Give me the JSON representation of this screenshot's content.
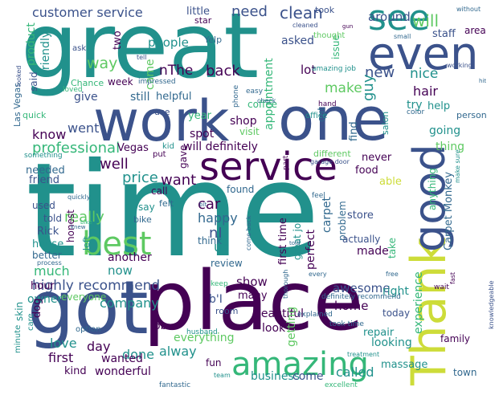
{
  "palette": {
    "deep_purple": "#440154",
    "indigo": "#3b528b",
    "blue": "#31688e",
    "teal": "#21918c",
    "green": "#35b779",
    "lime": "#5ec962",
    "yellow_green": "#b5de2b",
    "yellow": "#cddc39"
  },
  "words": [
    {
      "text": "time",
      "c": "teal"
    },
    {
      "text": "great",
      "c": "teal"
    },
    {
      "text": "place",
      "c": "deep_purple"
    },
    {
      "text": "got",
      "c": "indigo"
    },
    {
      "text": "work",
      "c": "indigo"
    },
    {
      "text": "one",
      "c": "indigo"
    },
    {
      "text": "Thank",
      "c": "yellow"
    },
    {
      "text": "good",
      "c": "indigo"
    },
    {
      "text": "even",
      "c": "indigo"
    },
    {
      "text": "service",
      "c": "deep_purple"
    },
    {
      "text": "best",
      "c": "lime"
    },
    {
      "text": "amazing",
      "c": "green"
    },
    {
      "text": "see",
      "c": "teal"
    },
    {
      "text": "customer service",
      "c": "indigo"
    },
    {
      "text": "need",
      "c": "indigo"
    },
    {
      "text": "clean",
      "c": "indigo"
    },
    {
      "text": "will",
      "c": "lime"
    },
    {
      "text": "professional",
      "c": "green"
    },
    {
      "text": "highly recommend",
      "c": "indigo"
    },
    {
      "text": "really",
      "c": "lime"
    },
    {
      "text": "price",
      "c": "teal"
    },
    {
      "text": "well",
      "c": "deep_purple"
    },
    {
      "text": "want",
      "c": "deep_purple"
    },
    {
      "text": "know",
      "c": "deep_purple"
    },
    {
      "text": "went",
      "c": "indigo"
    },
    {
      "text": "way",
      "c": "lime"
    },
    {
      "text": "came",
      "c": "lime"
    },
    {
      "text": "back",
      "c": "deep_purple"
    },
    {
      "text": "people",
      "c": "teal"
    },
    {
      "text": "Yelp",
      "c": "blue"
    },
    {
      "text": "little",
      "c": "indigo"
    },
    {
      "text": "star",
      "c": "deep_purple"
    },
    {
      "text": "took",
      "c": "indigo"
    },
    {
      "text": "around",
      "c": "indigo"
    },
    {
      "text": "staff",
      "c": "indigo"
    },
    {
      "text": "area",
      "c": "deep_purple"
    },
    {
      "text": "new",
      "c": "indigo"
    },
    {
      "text": "nice",
      "c": "teal"
    },
    {
      "text": "guy",
      "c": "teal"
    },
    {
      "text": "lot",
      "c": "deep_purple"
    },
    {
      "text": "make",
      "c": "lime"
    },
    {
      "text": "hair",
      "c": "deep_purple"
    },
    {
      "text": "try",
      "c": "teal"
    },
    {
      "text": "help",
      "c": "teal"
    },
    {
      "text": "asked",
      "c": "indigo"
    },
    {
      "text": "appointment",
      "c": "green"
    },
    {
      "text": "nThe",
      "c": "deep_purple"
    },
    {
      "text": "still",
      "c": "blue"
    },
    {
      "text": "give",
      "c": "indigo"
    },
    {
      "text": "friendly",
      "c": "teal"
    },
    {
      "text": "product",
      "c": "green"
    },
    {
      "text": "said",
      "c": "indigo"
    },
    {
      "text": "Las Vegas",
      "c": "blue"
    },
    {
      "text": "two",
      "c": "deep_purple"
    },
    {
      "text": "week",
      "c": "deep_purple"
    },
    {
      "text": "Chance",
      "c": "green"
    },
    {
      "text": "helpful",
      "c": "blue"
    },
    {
      "text": "use",
      "c": "indigo"
    },
    {
      "text": "year",
      "c": "green"
    },
    {
      "text": "shop",
      "c": "deep_purple"
    },
    {
      "text": "coffee",
      "c": "green"
    },
    {
      "text": "spot",
      "c": "deep_purple"
    },
    {
      "text": "visit",
      "c": "lime"
    },
    {
      "text": "issue",
      "c": "green"
    },
    {
      "text": "cut",
      "c": "blue"
    },
    {
      "text": "find",
      "c": "blue"
    },
    {
      "text": "salon",
      "c": "teal"
    },
    {
      "text": "going",
      "c": "teal"
    },
    {
      "text": "thing",
      "c": "lime"
    },
    {
      "text": "person",
      "c": "blue"
    },
    {
      "text": "will definitely",
      "c": "deep_purple"
    },
    {
      "text": "Vegas",
      "c": "deep_purple"
    },
    {
      "text": "quick",
      "c": "green"
    },
    {
      "text": "needed",
      "c": "blue"
    },
    {
      "text": "friend",
      "c": "indigo"
    },
    {
      "text": "call",
      "c": "deep_purple"
    },
    {
      "text": "felt",
      "c": "blue"
    },
    {
      "text": "car",
      "c": "deep_purple"
    },
    {
      "text": "found",
      "c": "blue"
    },
    {
      "text": "happy",
      "c": "blue"
    },
    {
      "text": "gave",
      "c": "deep_purple"
    },
    {
      "text": "food",
      "c": "deep_purple"
    },
    {
      "text": "able",
      "c": "yellow"
    },
    {
      "text": "never",
      "c": "deep_purple"
    },
    {
      "text": "perfect",
      "c": "deep_purple"
    },
    {
      "text": "carpet",
      "c": "blue"
    },
    {
      "text": "problem",
      "c": "blue"
    },
    {
      "text": "store",
      "c": "indigo"
    },
    {
      "text": "Carpet Monkey",
      "c": "blue"
    },
    {
      "text": "anything",
      "c": "green"
    },
    {
      "text": "used",
      "c": "indigo"
    },
    {
      "text": "told",
      "c": "indigo"
    },
    {
      "text": "Rick",
      "c": "indigo"
    },
    {
      "text": "house",
      "c": "teal"
    },
    {
      "text": "better",
      "c": "blue"
    },
    {
      "text": "honest",
      "c": "deep_purple"
    },
    {
      "text": "bike",
      "c": "blue"
    },
    {
      "text": "say",
      "c": "teal"
    },
    {
      "text": "nI",
      "c": "indigo"
    },
    {
      "text": "us",
      "c": "teal"
    },
    {
      "text": "review",
      "c": "blue"
    },
    {
      "text": "think",
      "c": "blue"
    },
    {
      "text": "first time",
      "c": "deep_purple"
    },
    {
      "text": "great job",
      "c": "teal"
    },
    {
      "text": "made",
      "c": "deep_purple"
    },
    {
      "text": "actually",
      "c": "indigo"
    },
    {
      "text": "take",
      "c": "green"
    },
    {
      "text": "much",
      "c": "green"
    },
    {
      "text": "now",
      "c": "teal"
    },
    {
      "text": "another",
      "c": "deep_purple"
    },
    {
      "text": "hour",
      "c": "deep_purple"
    },
    {
      "text": "owner",
      "c": "teal"
    },
    {
      "text": "everyone",
      "c": "lime"
    },
    {
      "text": "dog",
      "c": "deep_purple"
    },
    {
      "text": "show",
      "c": "deep_purple"
    },
    {
      "text": "awesome",
      "c": "indigo"
    },
    {
      "text": "right",
      "c": "teal"
    },
    {
      "text": "b'I",
      "c": "indigo"
    },
    {
      "text": "many",
      "c": "deep_purple"
    },
    {
      "text": "room",
      "c": "indigo"
    },
    {
      "text": "beautiful",
      "c": "deep_purple"
    },
    {
      "text": "look",
      "c": "deep_purple"
    },
    {
      "text": "getting",
      "c": "lime"
    },
    {
      "text": "home",
      "c": "deep_purple"
    },
    {
      "text": "experience",
      "c": "green"
    },
    {
      "text": "today",
      "c": "indigo"
    },
    {
      "text": "repair",
      "c": "teal"
    },
    {
      "text": "looking",
      "c": "teal"
    },
    {
      "text": "job",
      "c": "deep_purple"
    },
    {
      "text": "company",
      "c": "teal"
    },
    {
      "text": "love",
      "c": "teal"
    },
    {
      "text": "day",
      "c": "deep_purple"
    },
    {
      "text": "done",
      "c": "teal"
    },
    {
      "text": "alway",
      "c": "teal"
    },
    {
      "text": "wanted",
      "c": "deep_purple"
    },
    {
      "text": "first",
      "c": "deep_purple"
    },
    {
      "text": "kind",
      "c": "deep_purple"
    },
    {
      "text": "wonderful",
      "c": "deep_purple"
    },
    {
      "text": "everything",
      "c": "lime"
    },
    {
      "text": "fun",
      "c": "deep_purple"
    },
    {
      "text": "business",
      "c": "teal"
    },
    {
      "text": "come",
      "c": "indigo"
    },
    {
      "text": "called",
      "c": "teal"
    },
    {
      "text": "massage",
      "c": "teal"
    },
    {
      "text": "family",
      "c": "deep_purple"
    },
    {
      "text": "town",
      "c": "blue"
    },
    {
      "text": "definitely recommend",
      "c": "blue"
    },
    {
      "text": "explained",
      "c": "blue"
    },
    {
      "text": "ask",
      "c": "indigo"
    },
    {
      "text": "tell",
      "c": "indigo"
    },
    {
      "text": "small",
      "c": "blue"
    },
    {
      "text": "without",
      "c": "blue"
    },
    {
      "text": "cleaned",
      "c": "indigo"
    },
    {
      "text": "thought",
      "c": "lime"
    },
    {
      "text": "working",
      "c": "indigo"
    },
    {
      "text": "loved",
      "c": "green"
    },
    {
      "text": "impressed",
      "c": "blue"
    },
    {
      "text": "looked",
      "c": "indigo"
    },
    {
      "text": "phone",
      "c": "blue"
    },
    {
      "text": "easy",
      "c": "blue"
    },
    {
      "text": "check",
      "c": "blue"
    },
    {
      "text": "amazing job",
      "c": "teal"
    },
    {
      "text": "office",
      "c": "teal"
    },
    {
      "text": "hand",
      "c": "deep_purple"
    },
    {
      "text": "put",
      "c": "deep_purple"
    },
    {
      "text": "kid",
      "c": "teal"
    },
    {
      "text": "color",
      "c": "blue"
    },
    {
      "text": "different",
      "c": "lime"
    },
    {
      "text": "garage door",
      "c": "indigo"
    },
    {
      "text": "make sure",
      "c": "teal"
    },
    {
      "text": "something",
      "c": "teal"
    },
    {
      "text": "quickly",
      "c": "blue"
    },
    {
      "text": "feel",
      "c": "blue"
    },
    {
      "text": "part",
      "c": "deep_purple"
    },
    {
      "text": "left",
      "c": "teal"
    },
    {
      "text": "every",
      "c": "blue"
    },
    {
      "text": "free",
      "c": "blue"
    },
    {
      "text": "thorough",
      "c": "blue"
    },
    {
      "text": "keep",
      "c": "green"
    },
    {
      "text": "wait",
      "c": "deep_purple"
    },
    {
      "text": "fast",
      "c": "deep_purple"
    },
    {
      "text": "husband",
      "c": "teal"
    },
    {
      "text": "skin",
      "c": "teal"
    },
    {
      "text": "care",
      "c": "teal"
    },
    {
      "text": "option",
      "c": "blue"
    },
    {
      "text": "minute",
      "c": "teal"
    },
    {
      "text": "team",
      "c": "teal"
    },
    {
      "text": "fantastic",
      "c": "blue"
    },
    {
      "text": "excellent",
      "c": "green"
    },
    {
      "text": "took time",
      "c": "blue"
    },
    {
      "text": "treatment",
      "c": "teal"
    },
    {
      "text": "knowledgeable",
      "c": "indigo"
    },
    {
      "text": "process",
      "c": "blue"
    },
    {
      "text": "come back",
      "c": "blue"
    },
    {
      "text": "gun",
      "c": "deep_purple"
    },
    {
      "text": "knew",
      "c": "blue"
    },
    {
      "text": "bit",
      "c": "blue"
    },
    {
      "text": "bike",
      "c": "green"
    },
    {
      "text": "hit",
      "c": "blue"
    },
    {
      "text": "told",
      "c": "blue"
    }
  ]
}
